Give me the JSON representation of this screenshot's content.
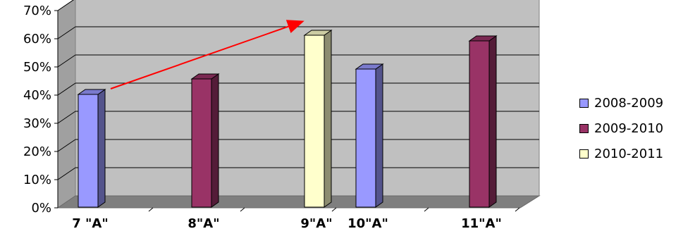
{
  "chart_data": {
    "type": "bar",
    "title": "",
    "xlabel": "",
    "ylabel": "",
    "ylim": [
      0,
      70
    ],
    "yticks": [
      "0%",
      "10%",
      "20%",
      "30%",
      "40%",
      "50%",
      "60%",
      "70%"
    ],
    "categories": [
      "7 \"A\"",
      "8\"A\"",
      "9\"A\"",
      "10\"A\"",
      "11\"A\""
    ],
    "grid": true,
    "three_d": true,
    "legend_position": "right",
    "series": [
      {
        "name": "2008-2009",
        "color": "#9999ff",
        "values": [
          40,
          null,
          null,
          49,
          null
        ]
      },
      {
        "name": "2009-2010",
        "color": "#993366",
        "values": [
          null,
          45.5,
          null,
          null,
          59
        ]
      },
      {
        "name": "2010-2011",
        "color": "#ffffcc",
        "values": [
          null,
          null,
          61,
          null,
          null
        ]
      }
    ],
    "annotation": {
      "type": "arrow",
      "color": "#ff0000",
      "from_category": "7 \"A\"",
      "to_category": "9\"A\""
    }
  }
}
